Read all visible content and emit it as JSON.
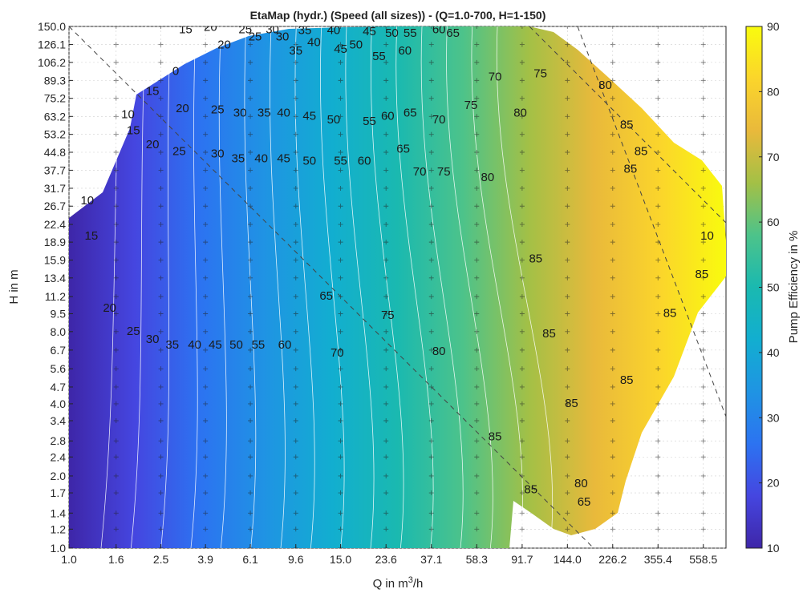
{
  "chart_data": {
    "type": "heatmap",
    "subtype": "filled-contour",
    "title": "EtaMap (hydr.) (Speed (all sizes)) - (Q=1.0-700, H=1-150)",
    "xlabel_main": "Q in m",
    "xlabel_sup": "3",
    "xlabel_tail": "/h",
    "ylabel": "H in m",
    "colorbar_label": "Pump Efficiency in %",
    "x_scale": "log",
    "y_scale": "log",
    "xlim": [
      1.0,
      700
    ],
    "ylim": [
      1.0,
      150
    ],
    "x_ticks": [
      "1.0",
      "1.6",
      "2.5",
      "3.9",
      "6.1",
      "9.6",
      "15.0",
      "23.6",
      "37.1",
      "58.3",
      "91.7",
      "144.0",
      "226.2",
      "355.4",
      "558.5"
    ],
    "y_ticks": [
      "150.0",
      "126.1",
      "106.2",
      "89.3",
      "75.2",
      "63.2",
      "53.2",
      "44.8",
      "37.7",
      "31.7",
      "26.7",
      "22.4",
      "18.9",
      "15.9",
      "13.4",
      "11.2",
      "9.5",
      "8.0",
      "6.7",
      "5.6",
      "4.7",
      "4.0",
      "3.4",
      "2.8",
      "2.4",
      "2.0",
      "1.7",
      "1.4",
      "1.2",
      "1.0"
    ],
    "colorbar_range": [
      10,
      90
    ],
    "colorbar_ticks": [
      "90",
      "80",
      "70",
      "60",
      "50",
      "40",
      "30",
      "20",
      "10"
    ],
    "colormap": [
      "#3e26a8",
      "#4546e0",
      "#2c73f1",
      "#1f94e3",
      "#12aed0",
      "#1ab9b0",
      "#4dc38a",
      "#a3c046",
      "#e9b93b",
      "#fbd52b",
      "#f9fb0e"
    ],
    "contour_levels": [
      10,
      15,
      20,
      25,
      30,
      35,
      40,
      45,
      50,
      55,
      60,
      65,
      70,
      75,
      80,
      85
    ],
    "grid": true,
    "contour_labels": [
      {
        "text": "10",
        "x": 1.2,
        "y": 28
      },
      {
        "text": "15",
        "x": 1.25,
        "y": 20
      },
      {
        "text": "20",
        "x": 1.5,
        "y": 10
      },
      {
        "text": "25",
        "x": 1.9,
        "y": 8.0
      },
      {
        "text": "30",
        "x": 2.3,
        "y": 7.4
      },
      {
        "text": "35",
        "x": 2.8,
        "y": 7.0
      },
      {
        "text": "40",
        "x": 3.5,
        "y": 7.0
      },
      {
        "text": "45",
        "x": 4.3,
        "y": 7.0
      },
      {
        "text": "50",
        "x": 5.3,
        "y": 7.0
      },
      {
        "text": "55",
        "x": 6.6,
        "y": 7.0
      },
      {
        "text": "60",
        "x": 8.6,
        "y": 7.0
      },
      {
        "text": "65",
        "x": 13,
        "y": 11.2
      },
      {
        "text": "70",
        "x": 14.5,
        "y": 6.5
      },
      {
        "text": "75",
        "x": 24,
        "y": 9.3
      },
      {
        "text": "80",
        "x": 40,
        "y": 6.6
      },
      {
        "text": "85",
        "x": 105,
        "y": 16
      },
      {
        "text": "85",
        "x": 120,
        "y": 7.8
      },
      {
        "text": "85",
        "x": 150,
        "y": 4.0
      },
      {
        "text": "85",
        "x": 70,
        "y": 2.9
      },
      {
        "text": "85",
        "x": 100,
        "y": 1.75
      },
      {
        "text": "80",
        "x": 165,
        "y": 1.85
      },
      {
        "text": "65",
        "x": 170,
        "y": 1.55
      },
      {
        "text": "85",
        "x": 260,
        "y": 5.0
      },
      {
        "text": "85",
        "x": 550,
        "y": 13.8
      },
      {
        "text": "85",
        "x": 400,
        "y": 9.5
      },
      {
        "text": "80",
        "x": 210,
        "y": 85
      },
      {
        "text": "85",
        "x": 260,
        "y": 58
      },
      {
        "text": "85",
        "x": 300,
        "y": 45
      },
      {
        "text": "85",
        "x": 270,
        "y": 38
      },
      {
        "text": "80",
        "x": 65,
        "y": 35
      },
      {
        "text": "80",
        "x": 90,
        "y": 65
      },
      {
        "text": "75",
        "x": 55,
        "y": 70
      },
      {
        "text": "75",
        "x": 42,
        "y": 37
      },
      {
        "text": "70",
        "x": 40,
        "y": 61
      },
      {
        "text": "70",
        "x": 33,
        "y": 37
      },
      {
        "text": "70",
        "x": 70,
        "y": 92
      },
      {
        "text": "75",
        "x": 110,
        "y": 95
      },
      {
        "text": "65",
        "x": 30,
        "y": 65
      },
      {
        "text": "65",
        "x": 28,
        "y": 46
      },
      {
        "text": "60",
        "x": 24,
        "y": 63
      },
      {
        "text": "60",
        "x": 19,
        "y": 41
      },
      {
        "text": "55",
        "x": 20,
        "y": 60
      },
      {
        "text": "55",
        "x": 15,
        "y": 41
      },
      {
        "text": "50",
        "x": 14,
        "y": 61
      },
      {
        "text": "50",
        "x": 11,
        "y": 41
      },
      {
        "text": "45",
        "x": 11,
        "y": 63
      },
      {
        "text": "45",
        "x": 8.5,
        "y": 42
      },
      {
        "text": "40",
        "x": 8.5,
        "y": 65
      },
      {
        "text": "40",
        "x": 6.8,
        "y": 42
      },
      {
        "text": "35",
        "x": 7.0,
        "y": 65
      },
      {
        "text": "35",
        "x": 5.4,
        "y": 42
      },
      {
        "text": "30",
        "x": 5.5,
        "y": 65
      },
      {
        "text": "30",
        "x": 4.4,
        "y": 44
      },
      {
        "text": "25",
        "x": 4.4,
        "y": 67
      },
      {
        "text": "25",
        "x": 3.0,
        "y": 45
      },
      {
        "text": "20",
        "x": 3.1,
        "y": 68
      },
      {
        "text": "20",
        "x": 2.3,
        "y": 48
      },
      {
        "text": "15",
        "x": 2.3,
        "y": 80
      },
      {
        "text": "15",
        "x": 1.9,
        "y": 55
      },
      {
        "text": "10",
        "x": 1.8,
        "y": 64
      },
      {
        "text": "0",
        "x": 2.9,
        "y": 97
      },
      {
        "text": "20",
        "x": 4.7,
        "y": 125
      },
      {
        "text": "25",
        "x": 6.4,
        "y": 135
      },
      {
        "text": "30",
        "x": 8.4,
        "y": 135
      },
      {
        "text": "35",
        "x": 9.6,
        "y": 118
      },
      {
        "text": "40",
        "x": 11.5,
        "y": 128
      },
      {
        "text": "45",
        "x": 15,
        "y": 120
      },
      {
        "text": "50",
        "x": 17.5,
        "y": 125
      },
      {
        "text": "55",
        "x": 22,
        "y": 112
      },
      {
        "text": "60",
        "x": 28.5,
        "y": 118
      },
      {
        "text": "65",
        "x": 46,
        "y": 140
      },
      {
        "text": "55",
        "x": 30,
        "y": 140
      },
      {
        "text": "50",
        "x": 25,
        "y": 140
      },
      {
        "text": "45",
        "x": 20,
        "y": 142
      },
      {
        "text": "60",
        "x": 40,
        "y": 145
      },
      {
        "text": "40",
        "x": 14,
        "y": 144
      },
      {
        "text": "35",
        "x": 10.5,
        "y": 144
      },
      {
        "text": "30",
        "x": 7.6,
        "y": 145
      },
      {
        "text": "25",
        "x": 5.8,
        "y": 145
      },
      {
        "text": "20",
        "x": 4.1,
        "y": 148
      },
      {
        "text": "15",
        "x": 3.2,
        "y": 145
      },
      {
        "text": "10",
        "x": 580,
        "y": 20
      }
    ]
  }
}
